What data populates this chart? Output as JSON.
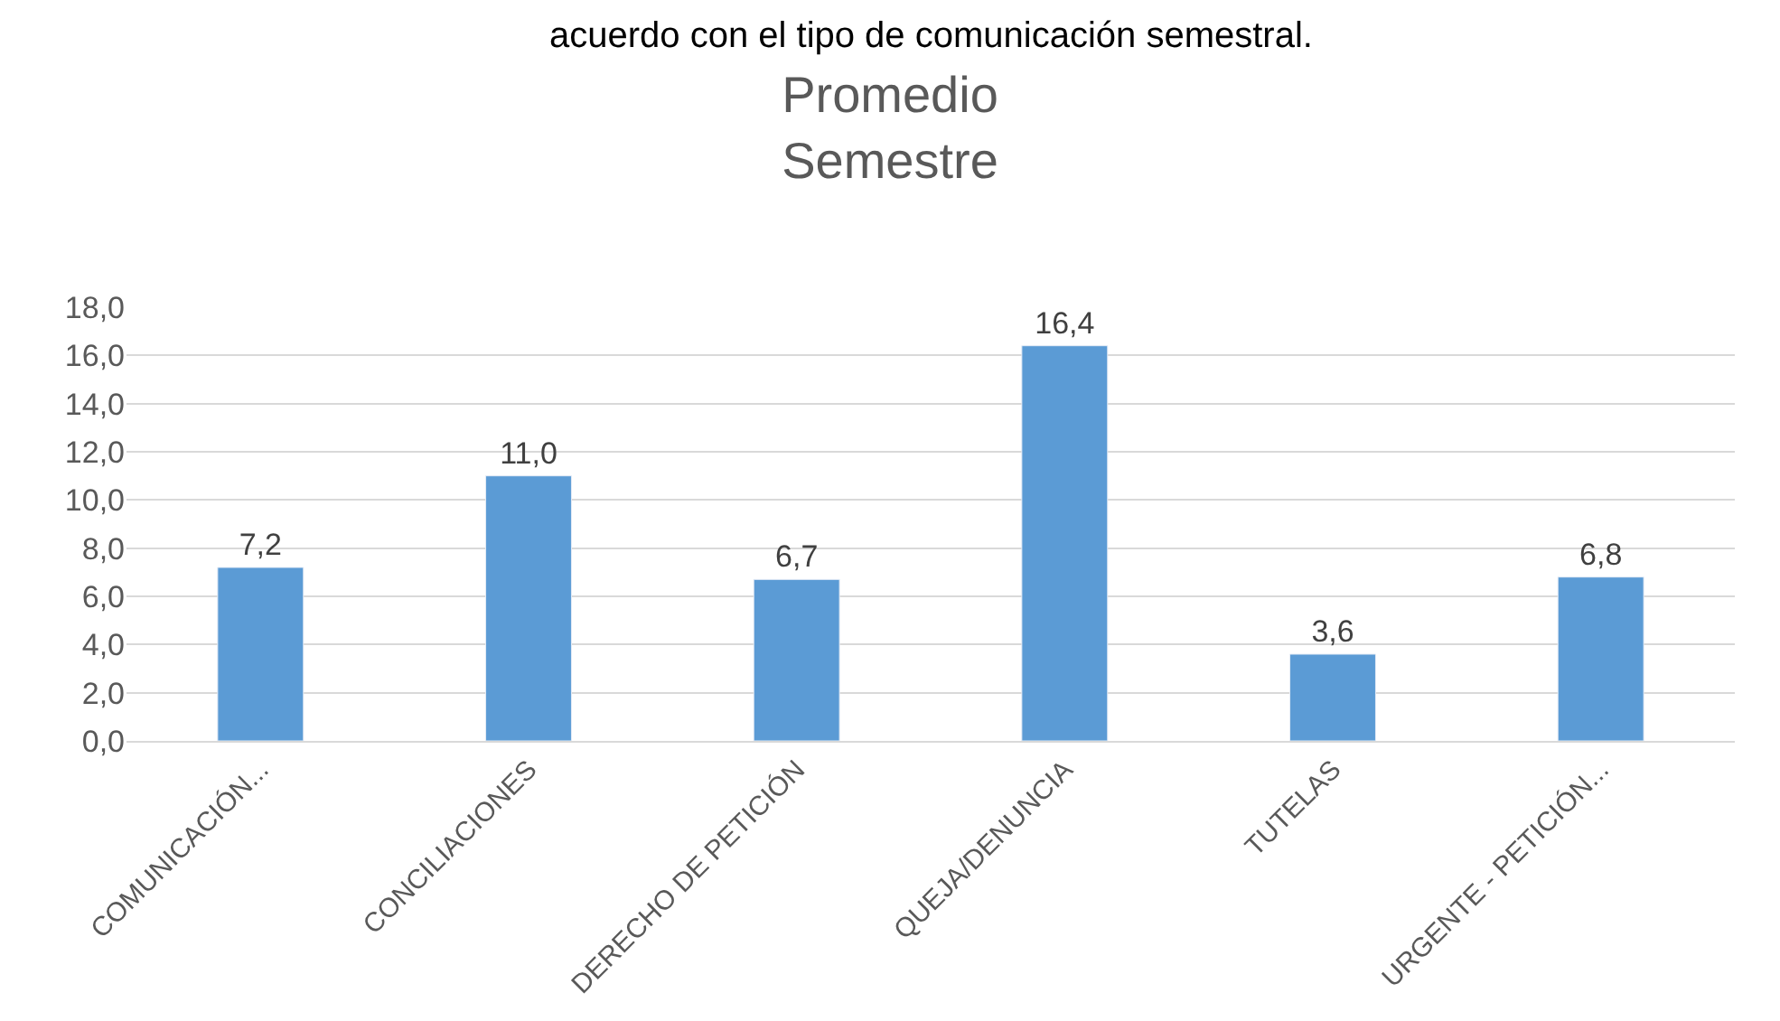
{
  "chart_data": {
    "type": "bar",
    "title": "Promedio Semestre",
    "annotations": [
      "acuerdo con el tipo de comunicación semestral."
    ],
    "categories": [
      "COMUNICACIÓN...",
      "CONCILIACIONES",
      "DERECHO DE PETICIÓN",
      "QUEJA/DENUNCIA",
      "TUTELAS",
      "URGENTE - PETICIÓN..."
    ],
    "values": [
      7.2,
      11.0,
      6.7,
      16.4,
      3.6,
      6.8
    ],
    "value_labels": [
      "7,2",
      "11,0",
      "6,7",
      "16,4",
      "3,6",
      "6,8"
    ],
    "color": "#5b9bd5",
    "ylim": [
      0,
      18
    ],
    "yticks": [
      {
        "value": 0,
        "label": "0,0"
      },
      {
        "value": 2,
        "label": "2,0"
      },
      {
        "value": 4,
        "label": "4,0"
      },
      {
        "value": 6,
        "label": "6,0"
      },
      {
        "value": 8,
        "label": "8,0"
      },
      {
        "value": 10,
        "label": "10,0"
      },
      {
        "value": 12,
        "label": "12,0"
      },
      {
        "value": 14,
        "label": "14,0"
      },
      {
        "value": 16,
        "label": "16,0"
      },
      {
        "value": 18,
        "label": "18,0"
      }
    ],
    "grid": "y",
    "legend": false
  }
}
